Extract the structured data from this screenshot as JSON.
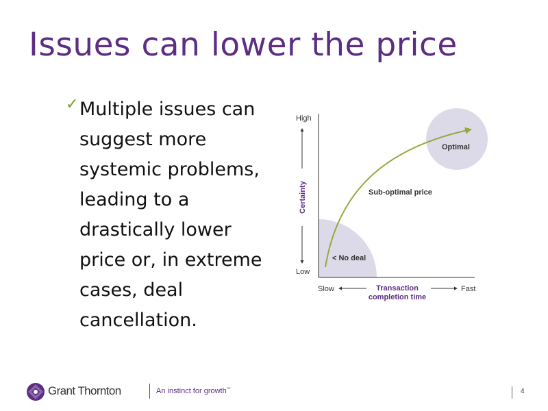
{
  "slide": {
    "title": "Issues can lower the price",
    "bullet": "Multiple issues can suggest more systemic problems, leading to a drastically lower price or, in extreme cases, deal cancellation.",
    "check_icon": "checkmark-icon",
    "page_number": "4"
  },
  "diagram": {
    "y_high": "High",
    "y_low": "Low",
    "y_axis_label": "Certainty",
    "x_slow": "Slow",
    "x_fast": "Fast",
    "x_axis_label_line1": "Transaction",
    "x_axis_label_line2": "completion time",
    "label_optimal": "Optimal",
    "label_sub_optimal": "Sub-optimal price",
    "label_no_deal": "< No deal",
    "colors": {
      "circle_fill": "#dcdae8",
      "curve": "#9ba63c",
      "axis_text": "#5c2d82"
    }
  },
  "footer": {
    "company": "Grant Thornton",
    "tagline": "An instinct for growth",
    "tagline_mark": "™",
    "brand_color": "#5c2d82"
  }
}
